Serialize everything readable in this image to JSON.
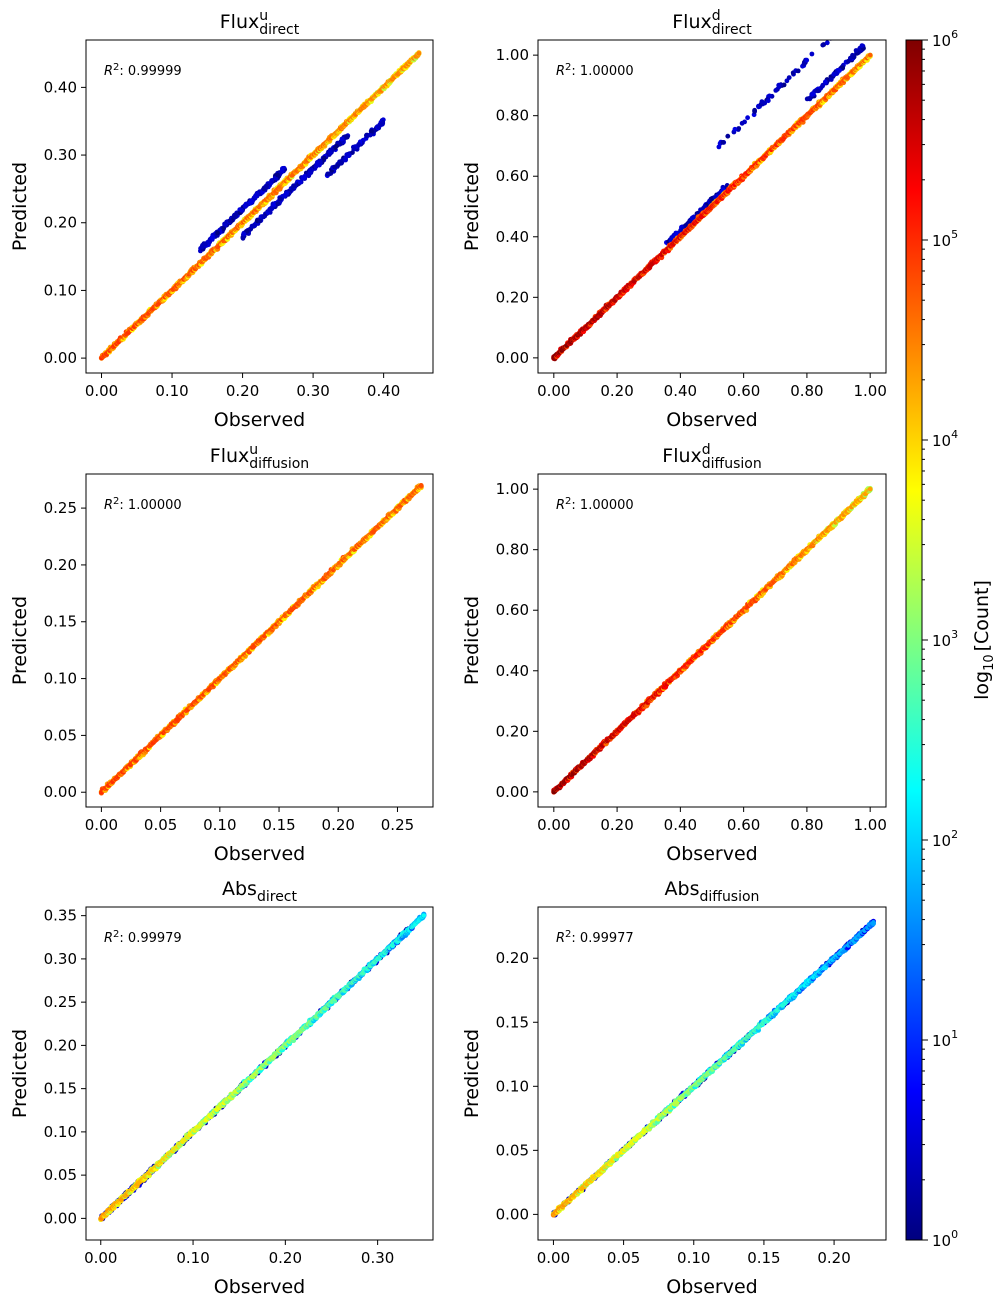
{
  "chart_data": [
    {
      "type": "scatter",
      "title": {
        "base": "Flux",
        "sup": "u",
        "sub": "direct"
      },
      "xlabel": "Observed",
      "ylabel": "Predicted",
      "xlim": [
        -0.022,
        0.47
      ],
      "ylim": [
        -0.022,
        0.47
      ],
      "xticks": [
        "0.00",
        "0.10",
        "0.20",
        "0.30",
        "0.40"
      ],
      "yticks": [
        "0.00",
        "0.10",
        "0.20",
        "0.30",
        "0.40"
      ],
      "annotation": {
        "label": "R",
        "sup": "2",
        "value": ": 0.99999"
      },
      "diagonal": {
        "start": 0,
        "end": 0.45,
        "count_start": 100000,
        "count_end": 30000
      },
      "scatter_clusters": [
        {
          "x0": 0.14,
          "x1": 0.26,
          "offset": 0.02,
          "count": 200
        },
        {
          "x0": 0.2,
          "x1": 0.35,
          "offset": -0.02,
          "count": 200
        },
        {
          "x0": 0.32,
          "x1": 0.4,
          "offset": -0.05,
          "count": 100
        }
      ]
    },
    {
      "type": "scatter",
      "title": {
        "base": "Flux",
        "sup": "d",
        "sub": "direct"
      },
      "xlabel": "Observed",
      "ylabel": "Predicted",
      "xlim": [
        -0.05,
        1.05
      ],
      "ylim": [
        -0.05,
        1.05
      ],
      "xticks": [
        "0.00",
        "0.20",
        "0.40",
        "0.60",
        "0.80",
        "1.00"
      ],
      "yticks": [
        "0.00",
        "0.20",
        "0.40",
        "0.60",
        "0.80",
        "1.00"
      ],
      "annotation": {
        "label": "R",
        "sup": "2",
        "value": ": 1.00000"
      },
      "diagonal": {
        "start": 0,
        "end": 1.0,
        "count_start": 1000000,
        "count_end": 50000
      },
      "scatter_clusters": [
        {
          "x0": 0.52,
          "x1": 0.92,
          "offset": 0.18,
          "count": 60
        },
        {
          "x0": 0.8,
          "x1": 0.98,
          "offset": 0.05,
          "count": 80
        },
        {
          "x0": 0.35,
          "x1": 0.55,
          "offset": 0.02,
          "count": 100
        }
      ]
    },
    {
      "type": "scatter",
      "title": {
        "base": "Flux",
        "sup": "u",
        "sub": "diffusion"
      },
      "xlabel": "Observed",
      "ylabel": "Predicted",
      "xlim": [
        -0.013,
        0.28
      ],
      "ylim": [
        -0.013,
        0.28
      ],
      "xticks": [
        "0.00",
        "0.05",
        "0.10",
        "0.15",
        "0.20",
        "0.25"
      ],
      "yticks": [
        "0.00",
        "0.05",
        "0.10",
        "0.15",
        "0.20",
        "0.25"
      ],
      "annotation": {
        "label": "R",
        "sup": "2",
        "value": ": 1.00000"
      },
      "diagonal": {
        "start": 0,
        "end": 0.27,
        "count_start": 100000,
        "count_end": 60000
      },
      "scatter_clusters": []
    },
    {
      "type": "scatter",
      "title": {
        "base": "Flux",
        "sup": "d",
        "sub": "diffusion"
      },
      "xlabel": "Observed",
      "ylabel": "Predicted",
      "xlim": [
        -0.05,
        1.05
      ],
      "ylim": [
        -0.05,
        1.05
      ],
      "xticks": [
        "0.00",
        "0.20",
        "0.40",
        "0.60",
        "0.80",
        "1.00"
      ],
      "yticks": [
        "0.00",
        "0.20",
        "0.40",
        "0.60",
        "0.80",
        "1.00"
      ],
      "annotation": {
        "label": "R",
        "sup": "2",
        "value": ": 1.00000"
      },
      "diagonal": {
        "start": 0,
        "end": 1.0,
        "count_start": 1000000,
        "count_end": 20000
      },
      "scatter_clusters": []
    },
    {
      "type": "scatter",
      "title": {
        "base": "Abs",
        "sup": "",
        "sub": "direct"
      },
      "xlabel": "Observed",
      "ylabel": "Predicted",
      "xlim": [
        -0.016,
        0.36
      ],
      "ylim": [
        -0.025,
        0.36
      ],
      "xticks": [
        "0.00",
        "0.10",
        "0.20",
        "0.30"
      ],
      "yticks": [
        "0.00",
        "0.05",
        "0.10",
        "0.15",
        "0.20",
        "0.25",
        "0.30",
        "0.35"
      ],
      "annotation": {
        "label": "R",
        "sup": "2",
        "value": ": 0.99979"
      },
      "diagonal": {
        "start": 0,
        "end": 0.35,
        "count_start": 30000,
        "count_end": 200
      },
      "scatter_clusters": [
        {
          "x0": 0.0,
          "x1": 0.06,
          "offset": 0.0,
          "count": 250
        },
        {
          "x0": 0.06,
          "x1": 0.34,
          "offset": 0.0,
          "count": 400
        }
      ]
    },
    {
      "type": "scatter",
      "title": {
        "base": "Abs",
        "sup": "",
        "sub": "diffusion"
      },
      "xlabel": "Observed",
      "ylabel": "Predicted",
      "xlim": [
        -0.011,
        0.237
      ],
      "ylim": [
        -0.02,
        0.24
      ],
      "xticks": [
        "0.00",
        "0.05",
        "0.10",
        "0.15",
        "0.20"
      ],
      "yticks": [
        "0.00",
        "0.05",
        "0.10",
        "0.15",
        "0.20"
      ],
      "annotation": {
        "label": "R",
        "sup": "2",
        "value": ": 0.99977"
      },
      "diagonal": {
        "start": 0,
        "end": 0.228,
        "count_start": 30000,
        "count_end": 50
      },
      "scatter_clusters": [
        {
          "x0": 0.0,
          "x1": 0.228,
          "offset": 0.0,
          "count": 400
        }
      ]
    }
  ],
  "colorbar": {
    "label": {
      "base": "log",
      "sub": "10",
      "rest": "[Count]"
    },
    "scale": "log",
    "range": [
      1,
      1000000
    ],
    "ticks": [
      {
        "base": "10",
        "exp": "0"
      },
      {
        "base": "10",
        "exp": "1"
      },
      {
        "base": "10",
        "exp": "2"
      },
      {
        "base": "10",
        "exp": "3"
      },
      {
        "base": "10",
        "exp": "4"
      },
      {
        "base": "10",
        "exp": "5"
      },
      {
        "base": "10",
        "exp": "6"
      }
    ],
    "colormap": [
      "#00007f",
      "#0000ff",
      "#007fff",
      "#00ffff",
      "#7fff7f",
      "#ffff00",
      "#ff7f00",
      "#ff0000",
      "#7f0000"
    ]
  }
}
